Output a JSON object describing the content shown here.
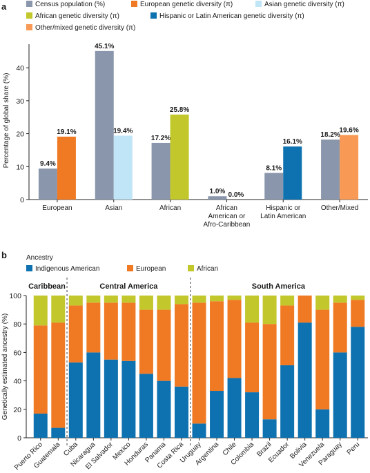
{
  "colors": {
    "census": "#8a96ab",
    "european": "#f07a24",
    "asian": "#bfe5f6",
    "african": "#c2c72b",
    "hispanic": "#0f72b0",
    "other": "#f89a55",
    "indigenous": "#0f72b0",
    "europeanAncestry": "#f07a24",
    "africanAncestry": "#c2c72b",
    "axis": "#222222",
    "grid": "#999999"
  },
  "chart_data": [
    {
      "type": "bar",
      "panel_label": "a",
      "ylabel": "Percentage of global share (%)",
      "ylim": [
        0,
        48
      ],
      "yticks": [
        "0",
        "10",
        "20",
        "30",
        "40"
      ],
      "legend": [
        {
          "label": "Census population (%)",
          "color_key": "census"
        },
        {
          "label": "European genetic diversity (π)",
          "color_key": "european"
        },
        {
          "label": "Asian genetic diversity (π)",
          "color_key": "asian"
        },
        {
          "label": "African genetic diversity (π)",
          "color_key": "african"
        },
        {
          "label": "Hispanic or Latin American genetic diversity  (π)",
          "color_key": "hispanic"
        },
        {
          "label": "Other/mixed genetic diversity (π)",
          "color_key": "other"
        }
      ],
      "groups": [
        {
          "category": [
            "European"
          ],
          "census": 9.4,
          "census_label": "9.4%",
          "diversity": 19.1,
          "diversity_label": "19.1%",
          "diversity_color": "european"
        },
        {
          "category": [
            "Asian"
          ],
          "census": 45.1,
          "census_label": "45.1%",
          "diversity": 19.4,
          "diversity_label": "19.4%",
          "diversity_color": "asian"
        },
        {
          "category": [
            "African"
          ],
          "census": 17.2,
          "census_label": "17.2%",
          "diversity": 25.8,
          "diversity_label": "25.8%",
          "diversity_color": "african"
        },
        {
          "category": [
            "African",
            "American or",
            "Afro-Caribbean"
          ],
          "census": 1.0,
          "census_label": "1.0%",
          "diversity": 0.0,
          "diversity_label": "0.0%",
          "diversity_color": "african"
        },
        {
          "category": [
            "Hispanic or",
            "Latin American"
          ],
          "census": 8.1,
          "census_label": "8.1%",
          "diversity": 16.1,
          "diversity_label": "16.1%",
          "diversity_color": "hispanic"
        },
        {
          "category": [
            "Other/Mixed"
          ],
          "census": 18.2,
          "census_label": "18.2%",
          "diversity": 19.6,
          "diversity_label": "19.6%",
          "diversity_color": "other"
        }
      ]
    },
    {
      "type": "bar",
      "stacked": true,
      "panel_label": "b",
      "legend_title": "Ancestry",
      "ylabel": "Genetically estimated ancestry (%)",
      "ylim": [
        0,
        100
      ],
      "yticks": [
        "0",
        "20",
        "40",
        "60",
        "80",
        "100"
      ],
      "series": [
        {
          "name": "Indigenous American",
          "color_key": "indigenous"
        },
        {
          "name": "European",
          "color_key": "europeanAncestry"
        },
        {
          "name": "African",
          "color_key": "africanAncestry"
        }
      ],
      "regions": [
        {
          "name": "Caribbean",
          "countries": [
            {
              "name": "Puerto Rico",
              "indigenous": 17,
              "european": 62,
              "african": 21
            },
            {
              "name": "Guatemala",
              "indigenous": 7,
              "european": 74,
              "african": 19
            }
          ]
        },
        {
          "name": "Central America",
          "countries": [
            {
              "name": "Cuba",
              "indigenous": 53,
              "european": 40,
              "african": 7
            },
            {
              "name": "Nicaragua",
              "indigenous": 60,
              "european": 35,
              "african": 5
            },
            {
              "name": "El Salvador",
              "indigenous": 55,
              "european": 40,
              "african": 5
            },
            {
              "name": "Mexico",
              "indigenous": 54,
              "european": 41,
              "african": 5
            },
            {
              "name": "Honduras",
              "indigenous": 45,
              "european": 45,
              "african": 10
            },
            {
              "name": "Panama",
              "indigenous": 40,
              "european": 50,
              "african": 10
            },
            {
              "name": "Costa Rica",
              "indigenous": 36,
              "european": 58,
              "african": 6
            }
          ]
        },
        {
          "name": "South America",
          "countries": [
            {
              "name": "Uruguay",
              "indigenous": 10,
              "european": 85,
              "african": 5
            },
            {
              "name": "Argentina",
              "indigenous": 33,
              "european": 63,
              "african": 4
            },
            {
              "name": "Chile",
              "indigenous": 42,
              "european": 55,
              "african": 3
            },
            {
              "name": "Colombia",
              "indigenous": 32,
              "european": 49,
              "african": 19
            },
            {
              "name": "Brazil",
              "indigenous": 13,
              "european": 67,
              "african": 20
            },
            {
              "name": "Ecuador",
              "indigenous": 51,
              "european": 42,
              "african": 7
            },
            {
              "name": "Bolivia",
              "indigenous": 81,
              "european": 19,
              "african": 0
            },
            {
              "name": "Venezuela",
              "indigenous": 20,
              "european": 70,
              "african": 10
            },
            {
              "name": "Paraguay",
              "indigenous": 60,
              "european": 35,
              "african": 5
            },
            {
              "name": "Peru",
              "indigenous": 78,
              "european": 19,
              "african": 3
            }
          ]
        }
      ]
    }
  ]
}
